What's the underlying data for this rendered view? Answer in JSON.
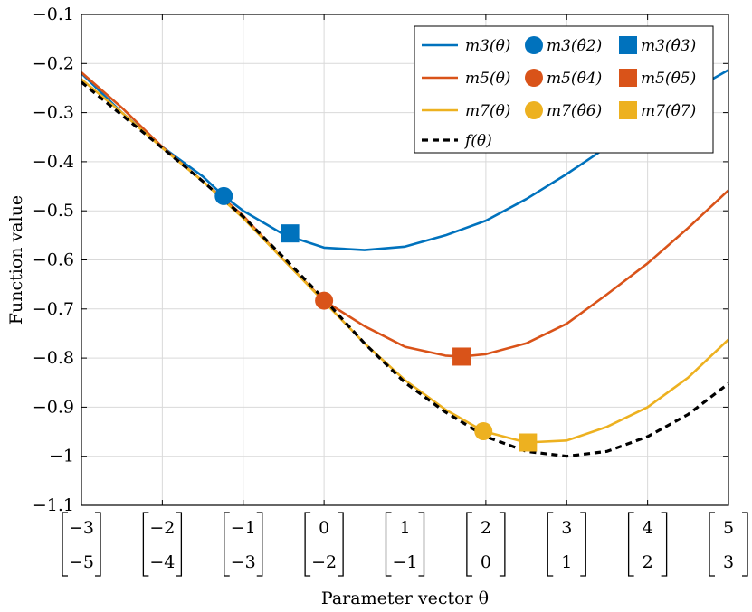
{
  "chart_data": {
    "type": "line",
    "title": "",
    "xlabel": "Parameter vector θ",
    "ylabel": "Function value",
    "xlim": [
      -3,
      5
    ],
    "ylim": [
      -1.1,
      -0.1
    ],
    "grid": true,
    "yticks": [
      -1.1,
      -1,
      -0.9,
      -0.8,
      -0.7,
      -0.6,
      -0.5,
      -0.4,
      -0.3,
      -0.2,
      -0.1
    ],
    "ytick_labels": [
      "−1.1",
      "−1",
      "−0.9",
      "−0.8",
      "−0.7",
      "−0.6",
      "−0.5",
      "−0.4",
      "−0.3",
      "−0.2",
      "−0.1"
    ],
    "xticks": [
      -3,
      -2,
      -1,
      0,
      1,
      2,
      3,
      4,
      5
    ],
    "xtick_vectors": [
      [
        "−3",
        "−5"
      ],
      [
        "−2",
        "−4"
      ],
      [
        "−1",
        "−3"
      ],
      [
        "0",
        "−2"
      ],
      [
        "1",
        "−1"
      ],
      [
        "2",
        "0"
      ],
      [
        "3",
        "1"
      ],
      [
        "4",
        "2"
      ],
      [
        "5",
        "3"
      ]
    ],
    "legend_position": "top-right",
    "series": [
      {
        "name": "m3(θ)",
        "color": "#0072BD",
        "dash": "solid",
        "x": [
          -3,
          -2.5,
          -2,
          -1.5,
          -1.24,
          -1,
          -0.5,
          0,
          0.5,
          1,
          1.5,
          2,
          2.5,
          3,
          3.5,
          4,
          4.5,
          5
        ],
        "y": [
          -0.22,
          -0.3,
          -0.37,
          -0.43,
          -0.47,
          -0.5,
          -0.548,
          -0.575,
          -0.58,
          -0.573,
          -0.55,
          -0.52,
          -0.476,
          -0.425,
          -0.37,
          -0.315,
          -0.26,
          -0.213
        ]
      },
      {
        "name": "m5(θ)",
        "color": "#D95319",
        "dash": "solid",
        "x": [
          -3,
          -2.5,
          -2,
          -1.5,
          -1,
          -0.5,
          0,
          0.5,
          1,
          1.5,
          1.7,
          2,
          2.5,
          3,
          3.5,
          4,
          4.5,
          5
        ],
        "y": [
          -0.218,
          -0.29,
          -0.37,
          -0.44,
          -0.51,
          -0.6,
          -0.683,
          -0.735,
          -0.777,
          -0.795,
          -0.797,
          -0.792,
          -0.77,
          -0.73,
          -0.67,
          -0.607,
          -0.535,
          -0.458
        ]
      },
      {
        "name": "m7(θ)",
        "color": "#EDB120",
        "dash": "solid",
        "x": [
          -3,
          -2.5,
          -2,
          -1.5,
          -1,
          -0.5,
          0,
          0.5,
          1,
          1.5,
          1.97,
          2.5,
          3,
          3.5,
          4,
          4.5,
          5
        ],
        "y": [
          -0.232,
          -0.3,
          -0.372,
          -0.44,
          -0.515,
          -0.6,
          -0.685,
          -0.77,
          -0.845,
          -0.905,
          -0.949,
          -0.972,
          -0.968,
          -0.94,
          -0.9,
          -0.84,
          -0.762
        ]
      },
      {
        "name": "f(θ)",
        "color": "#000000",
        "dash": "dashed",
        "x": [
          -3,
          -2.5,
          -2,
          -1.5,
          -1,
          -0.5,
          0,
          0.5,
          1,
          1.5,
          2,
          2.5,
          3,
          3.5,
          4,
          4.5,
          5
        ],
        "y": [
          -0.238,
          -0.305,
          -0.372,
          -0.44,
          -0.512,
          -0.595,
          -0.68,
          -0.77,
          -0.85,
          -0.91,
          -0.96,
          -0.99,
          -1.0,
          -0.99,
          -0.96,
          -0.915,
          -0.852
        ]
      }
    ],
    "markers": [
      {
        "name": "m3(θ̂2)",
        "shape": "circle",
        "color": "#0072BD",
        "x": -1.24,
        "y": -0.47
      },
      {
        "name": "m3(θ̂3)",
        "shape": "square",
        "color": "#0072BD",
        "x": -0.42,
        "y": -0.546
      },
      {
        "name": "m5(θ̂4)",
        "shape": "circle",
        "color": "#D95319",
        "x": 0.0,
        "y": -0.683
      },
      {
        "name": "m5(θ̂5)",
        "shape": "square",
        "color": "#D95319",
        "x": 1.7,
        "y": -0.797
      },
      {
        "name": "m7(θ̂6)",
        "shape": "circle",
        "color": "#EDB120",
        "x": 1.97,
        "y": -0.949
      },
      {
        "name": "m7(θ̂7)",
        "shape": "square",
        "color": "#EDB120",
        "x": 2.52,
        "y": -0.972
      }
    ],
    "legend": {
      "rows": [
        [
          "m3(θ)",
          "m3(θ̂2)",
          "m3(θ̂3)"
        ],
        [
          "m5(θ)",
          "m5(θ̂4)",
          "m5(θ̂5)"
        ],
        [
          "m7(θ)",
          "m7(θ̂6)",
          "m7(θ̂7)"
        ],
        [
          "f(θ)"
        ]
      ]
    }
  }
}
